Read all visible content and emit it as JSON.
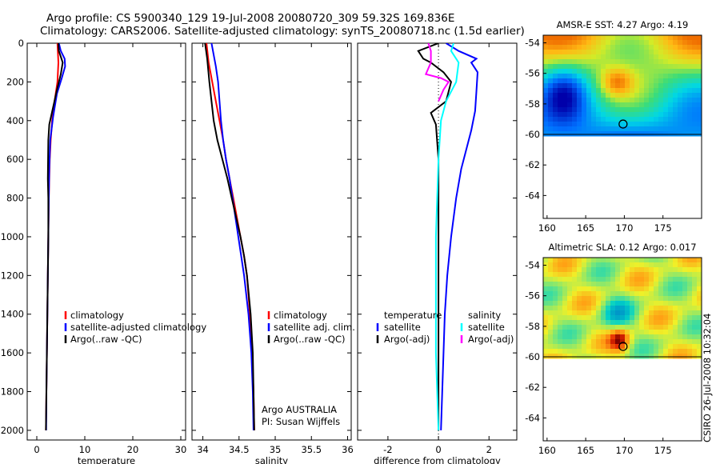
{
  "header": {
    "title_line1": "Argo profile: CS 5900340_129 19-Jul-2008 20080720_309 59.32S 169.836E",
    "title_line2": "Climatology: CARS2006. Satellite-adjusted climatology: synTS_20080718.nc (1.5d earlier)"
  },
  "colors": {
    "climatology": "#ff0000",
    "satellite": "#0000ff",
    "argo": "#000000",
    "salinity_satellite": "#00ffff",
    "salinity_argo": "#ff00ff"
  },
  "footer": {
    "credit": "CSIRO 26-Jul-2008 10:32:04"
  },
  "chart_data": [
    {
      "type": "line",
      "xlabel": "temperature",
      "ylim": [
        2050,
        0
      ],
      "xlim": [
        -2,
        31
      ],
      "xticks": [
        0,
        10,
        20,
        30
      ],
      "yticks": [
        0,
        200,
        400,
        600,
        800,
        1000,
        1200,
        1400,
        1600,
        1800,
        2000
      ],
      "legend": {
        "placement": "lower-right",
        "entries": [
          "climatology",
          "satellite-adjusted climatology",
          "Argo(..raw -QC)"
        ]
      },
      "series": [
        {
          "name": "climatology",
          "color": "#ff0000",
          "points": [
            [
              4.3,
              0
            ],
            [
              4.4,
              50
            ],
            [
              4.5,
              100
            ],
            [
              4.3,
              200
            ],
            [
              3.7,
              300
            ],
            [
              3.2,
              400
            ],
            [
              2.9,
              500
            ],
            [
              2.7,
              600
            ],
            [
              2.6,
              700
            ],
            [
              2.5,
              800
            ],
            [
              2.4,
              1000
            ],
            [
              2.3,
              1200
            ],
            [
              2.2,
              1400
            ],
            [
              2.1,
              1600
            ],
            [
              2.0,
              1800
            ],
            [
              1.9,
              2000
            ]
          ]
        },
        {
          "name": "satellite-adjusted climatology",
          "color": "#0000ff",
          "points": [
            [
              4.6,
              0
            ],
            [
              5.0,
              40
            ],
            [
              5.8,
              80
            ],
            [
              5.9,
              120
            ],
            [
              5.2,
              180
            ],
            [
              4.2,
              260
            ],
            [
              3.4,
              380
            ],
            [
              2.8,
              500
            ],
            [
              2.6,
              650
            ],
            [
              2.5,
              800
            ],
            [
              2.4,
              1000
            ],
            [
              2.3,
              1200
            ],
            [
              2.2,
              1400
            ],
            [
              2.1,
              1600
            ],
            [
              2.0,
              1800
            ],
            [
              1.95,
              2000
            ]
          ]
        },
        {
          "name": "Argo(..raw -QC)",
          "color": "#000000",
          "points": [
            [
              4.5,
              0
            ],
            [
              4.6,
              40
            ],
            [
              5.4,
              100
            ],
            [
              5.0,
              160
            ],
            [
              4.2,
              240
            ],
            [
              3.5,
              320
            ],
            [
              2.6,
              420
            ],
            [
              2.4,
              500
            ],
            [
              2.3,
              700
            ],
            [
              2.4,
              800
            ],
            [
              2.4,
              1000
            ],
            [
              2.3,
              1200
            ],
            [
              2.2,
              1400
            ],
            [
              2.1,
              1600
            ],
            [
              2.0,
              1800
            ],
            [
              1.9,
              2000
            ]
          ]
        }
      ]
    },
    {
      "type": "line",
      "xlabel": "salinity",
      "ylim": [
        2050,
        0
      ],
      "xlim": [
        33.85,
        36.05
      ],
      "xticks": [
        34,
        34.5,
        35,
        35.5,
        36
      ],
      "legend": {
        "placement": "lower-right",
        "entries": [
          "climatology",
          "satellite adj. clim.",
          "Argo(..raw -QC)"
        ]
      },
      "annotations": [
        "Argo AUSTRALIA",
        "PI: Susan Wijffels"
      ],
      "series": [
        {
          "name": "climatology",
          "color": "#ff0000",
          "points": [
            [
              34.05,
              0
            ],
            [
              34.08,
              100
            ],
            [
              34.13,
              200
            ],
            [
              34.18,
              300
            ],
            [
              34.23,
              400
            ],
            [
              34.28,
              500
            ],
            [
              34.32,
              600
            ],
            [
              34.37,
              700
            ],
            [
              34.42,
              800
            ],
            [
              34.47,
              900
            ],
            [
              34.52,
              1000
            ],
            [
              34.57,
              1100
            ],
            [
              34.61,
              1200
            ],
            [
              34.65,
              1400
            ],
            [
              34.68,
              1600
            ],
            [
              34.7,
              1800
            ],
            [
              34.71,
              2000
            ]
          ]
        },
        {
          "name": "satellite adj. clim.",
          "color": "#0000ff",
          "points": [
            [
              34.12,
              0
            ],
            [
              34.15,
              60
            ],
            [
              34.18,
              120
            ],
            [
              34.21,
              200
            ],
            [
              34.23,
              300
            ],
            [
              34.25,
              400
            ],
            [
              34.28,
              500
            ],
            [
              34.32,
              600
            ],
            [
              34.37,
              700
            ],
            [
              34.41,
              800
            ],
            [
              34.45,
              900
            ],
            [
              34.49,
              1000
            ],
            [
              34.53,
              1100
            ],
            [
              34.57,
              1200
            ],
            [
              34.63,
              1400
            ],
            [
              34.67,
              1600
            ],
            [
              34.69,
              1800
            ],
            [
              34.7,
              2000
            ]
          ]
        },
        {
          "name": "Argo(..raw -QC)",
          "color": "#000000",
          "points": [
            [
              34.03,
              0
            ],
            [
              34.06,
              80
            ],
            [
              34.09,
              200
            ],
            [
              34.12,
              300
            ],
            [
              34.15,
              400
            ],
            [
              34.2,
              500
            ],
            [
              34.27,
              600
            ],
            [
              34.34,
              700
            ],
            [
              34.4,
              800
            ],
            [
              34.46,
              900
            ],
            [
              34.52,
              1000
            ],
            [
              34.57,
              1100
            ],
            [
              34.61,
              1200
            ],
            [
              34.66,
              1400
            ],
            [
              34.69,
              1600
            ],
            [
              34.7,
              1800
            ],
            [
              34.71,
              2000
            ]
          ]
        }
      ]
    },
    {
      "type": "line",
      "xlabel": "difference from climatology",
      "ylim": [
        2050,
        0
      ],
      "xlim": [
        -3.2,
        3.1
      ],
      "xticks": [
        -2,
        0,
        2
      ],
      "legend": {
        "placement": "lower-left",
        "groups": [
          {
            "title": "temperature",
            "entries": [
              "satellite",
              "Argo(-adj)"
            ]
          },
          {
            "title": "salinity",
            "entries": [
              "satellite",
              "Argo(-adj)"
            ]
          }
        ]
      },
      "series": [
        {
          "name": "satellite",
          "group": "temperature",
          "color": "#0000ff",
          "points": [
            [
              0.3,
              0
            ],
            [
              0.8,
              40
            ],
            [
              1.5,
              80
            ],
            [
              1.3,
              100
            ],
            [
              1.55,
              150
            ],
            [
              1.5,
              250
            ],
            [
              1.45,
              350
            ],
            [
              1.3,
              450
            ],
            [
              1.1,
              550
            ],
            [
              0.9,
              650
            ],
            [
              0.7,
              800
            ],
            [
              0.5,
              1000
            ],
            [
              0.35,
              1200
            ],
            [
              0.25,
              1400
            ],
            [
              0.2,
              1600
            ],
            [
              0.15,
              1800
            ],
            [
              0.1,
              2000
            ]
          ]
        },
        {
          "name": "Argo(-adj)",
          "group": "temperature",
          "color": "#000000",
          "points": [
            [
              0.0,
              0
            ],
            [
              -0.8,
              40
            ],
            [
              -0.6,
              80
            ],
            [
              -0.3,
              100
            ],
            [
              0.2,
              150
            ],
            [
              0.5,
              200
            ],
            [
              0.3,
              300
            ],
            [
              -0.3,
              360
            ],
            [
              -0.1,
              420
            ],
            [
              0.0,
              600
            ],
            [
              0.0,
              800
            ],
            [
              0.0,
              1000
            ],
            [
              0.0,
              1400
            ],
            [
              0.0,
              1800
            ],
            [
              0.0,
              2000
            ]
          ]
        },
        {
          "name": "satellite",
          "group": "salinity",
          "color": "#00ffff",
          "points": [
            [
              0.6,
              0
            ],
            [
              0.5,
              40
            ],
            [
              0.8,
              100
            ],
            [
              0.7,
              200
            ],
            [
              0.3,
              300
            ],
            [
              0.1,
              400
            ],
            [
              0.0,
              600
            ],
            [
              -0.05,
              800
            ],
            [
              -0.1,
              1000
            ],
            [
              -0.1,
              1200
            ],
            [
              -0.1,
              1400
            ],
            [
              -0.1,
              1600
            ],
            [
              -0.05,
              1800
            ],
            [
              0.0,
              2000
            ]
          ]
        },
        {
          "name": "Argo(-adj)",
          "group": "salinity",
          "color": "#ff00ff",
          "points": [
            [
              -0.4,
              0
            ],
            [
              -0.3,
              40
            ],
            [
              -0.3,
              100
            ],
            [
              -0.5,
              160
            ],
            [
              0.1,
              180
            ],
            [
              0.4,
              200
            ],
            [
              0.2,
              240
            ],
            [
              0.0,
              300
            ]
          ]
        }
      ]
    },
    {
      "type": "heatmap",
      "title": "AMSR-E SST: 4.27 Argo: 4.19",
      "xlim": [
        159.5,
        180
      ],
      "ylim": [
        -65.5,
        -53.5
      ],
      "xticks": [
        160,
        165,
        170,
        175
      ],
      "yticks": [
        -54,
        -56,
        -58,
        -60,
        -62,
        -64
      ],
      "data_extent_lat": [
        -60,
        -53.5
      ],
      "marker": {
        "lon": 169.836,
        "lat": -59.32
      }
    },
    {
      "type": "heatmap",
      "title": "Altimetric SLA: 0.12 Argo: 0.017",
      "xlim": [
        159.5,
        180
      ],
      "ylim": [
        -65.5,
        -53.5
      ],
      "xticks": [
        160,
        165,
        170,
        175
      ],
      "yticks": [
        -54,
        -56,
        -58,
        -60,
        -62,
        -64
      ],
      "data_extent_lat": [
        -60,
        -53.5
      ],
      "marker": {
        "lon": 169.836,
        "lat": -59.32
      }
    }
  ]
}
